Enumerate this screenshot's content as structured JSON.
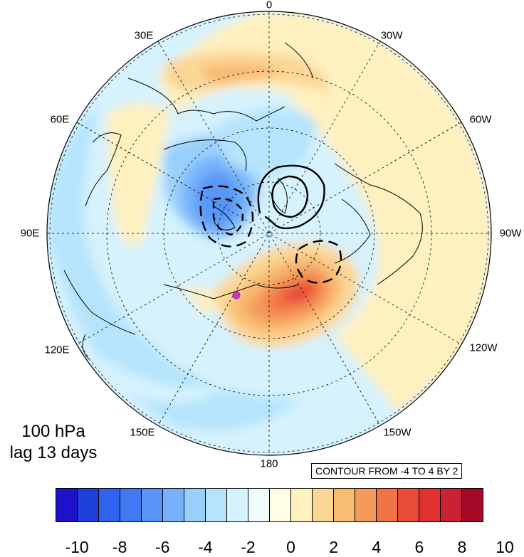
{
  "map": {
    "projection": "north-polar-stereographic",
    "longitude_labels": [
      "0",
      "30W",
      "60W",
      "90W",
      "120W",
      "150W",
      "180",
      "150E",
      "120E",
      "90E",
      "60E",
      "30E"
    ],
    "marker_color": "#cc33cc",
    "contour_color": "#000000"
  },
  "caption": {
    "level": "100 hPa",
    "lag": "lag 13 days"
  },
  "contour_info": "CONTOUR FROM -4 TO 4 BY 2",
  "colorbar": {
    "colors": [
      "#1f10c9",
      "#1e3fd8",
      "#2f62ef",
      "#4179f5",
      "#5a96f7",
      "#76b2f9",
      "#99d0fb",
      "#b5e4fc",
      "#d5f2fd",
      "#eefcfe",
      "#fffde4",
      "#fff0bf",
      "#fbd796",
      "#f8bc73",
      "#f59a5a",
      "#ef7446",
      "#ea4a3a",
      "#e13231",
      "#cc2034",
      "#a30a27"
    ],
    "labels": [
      "-10",
      "-8",
      "-6",
      "-4",
      "-2",
      "0",
      "2",
      "4",
      "6",
      "8",
      "10"
    ]
  }
}
